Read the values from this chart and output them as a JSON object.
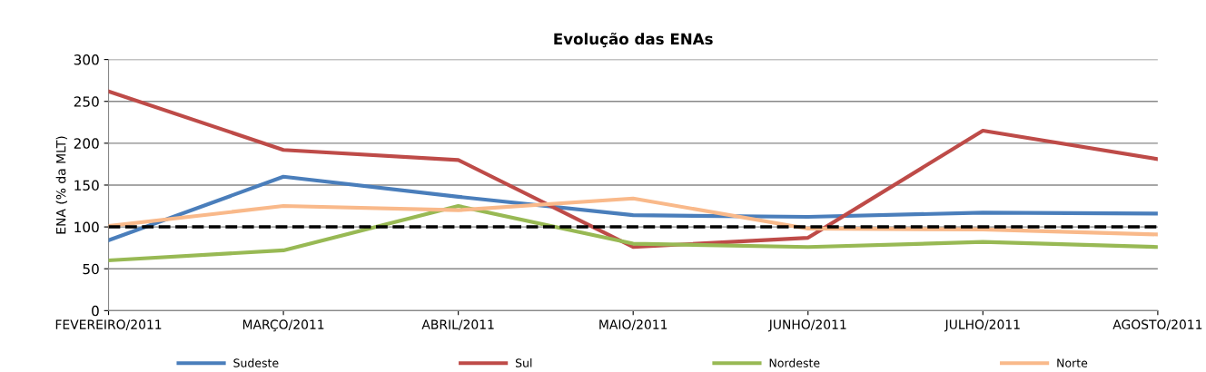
{
  "chart_data": {
    "type": "line",
    "title": "Evolução das ENAs",
    "ylabel": "ENA (% da MLT)",
    "categories": [
      "FEVEREIRO/2011",
      "MARÇO/2011",
      "ABRIL/2011",
      "MAIO/2011",
      "JUNHO/2011",
      "JULHO/2011",
      "AGOSTO/2011"
    ],
    "series": [
      {
        "name": "Sudeste",
        "color": "#4a7ebb",
        "values": [
          84,
          160,
          136,
          114,
          112,
          117,
          116
        ]
      },
      {
        "name": "Sul",
        "color": "#be4b48",
        "values": [
          262,
          192,
          180,
          76,
          87,
          215,
          181
        ]
      },
      {
        "name": "Nordeste",
        "color": "#98b954",
        "values": [
          60,
          72,
          125,
          80,
          76,
          82,
          76
        ]
      },
      {
        "name": "Norte",
        "color": "#f9b98a",
        "values": [
          101,
          125,
          120,
          134,
          98,
          97,
          91
        ]
      }
    ],
    "ref_lines": [
      {
        "axis": "y",
        "value": 100,
        "label": null,
        "color": "#000000",
        "line_style": "dashed"
      }
    ],
    "ylim": [
      0,
      300
    ],
    "yticks": [
      0,
      50,
      100,
      150,
      200,
      250,
      300
    ],
    "grid": "y",
    "legend": "bottom",
    "marker": "none",
    "line_style": "solid"
  }
}
